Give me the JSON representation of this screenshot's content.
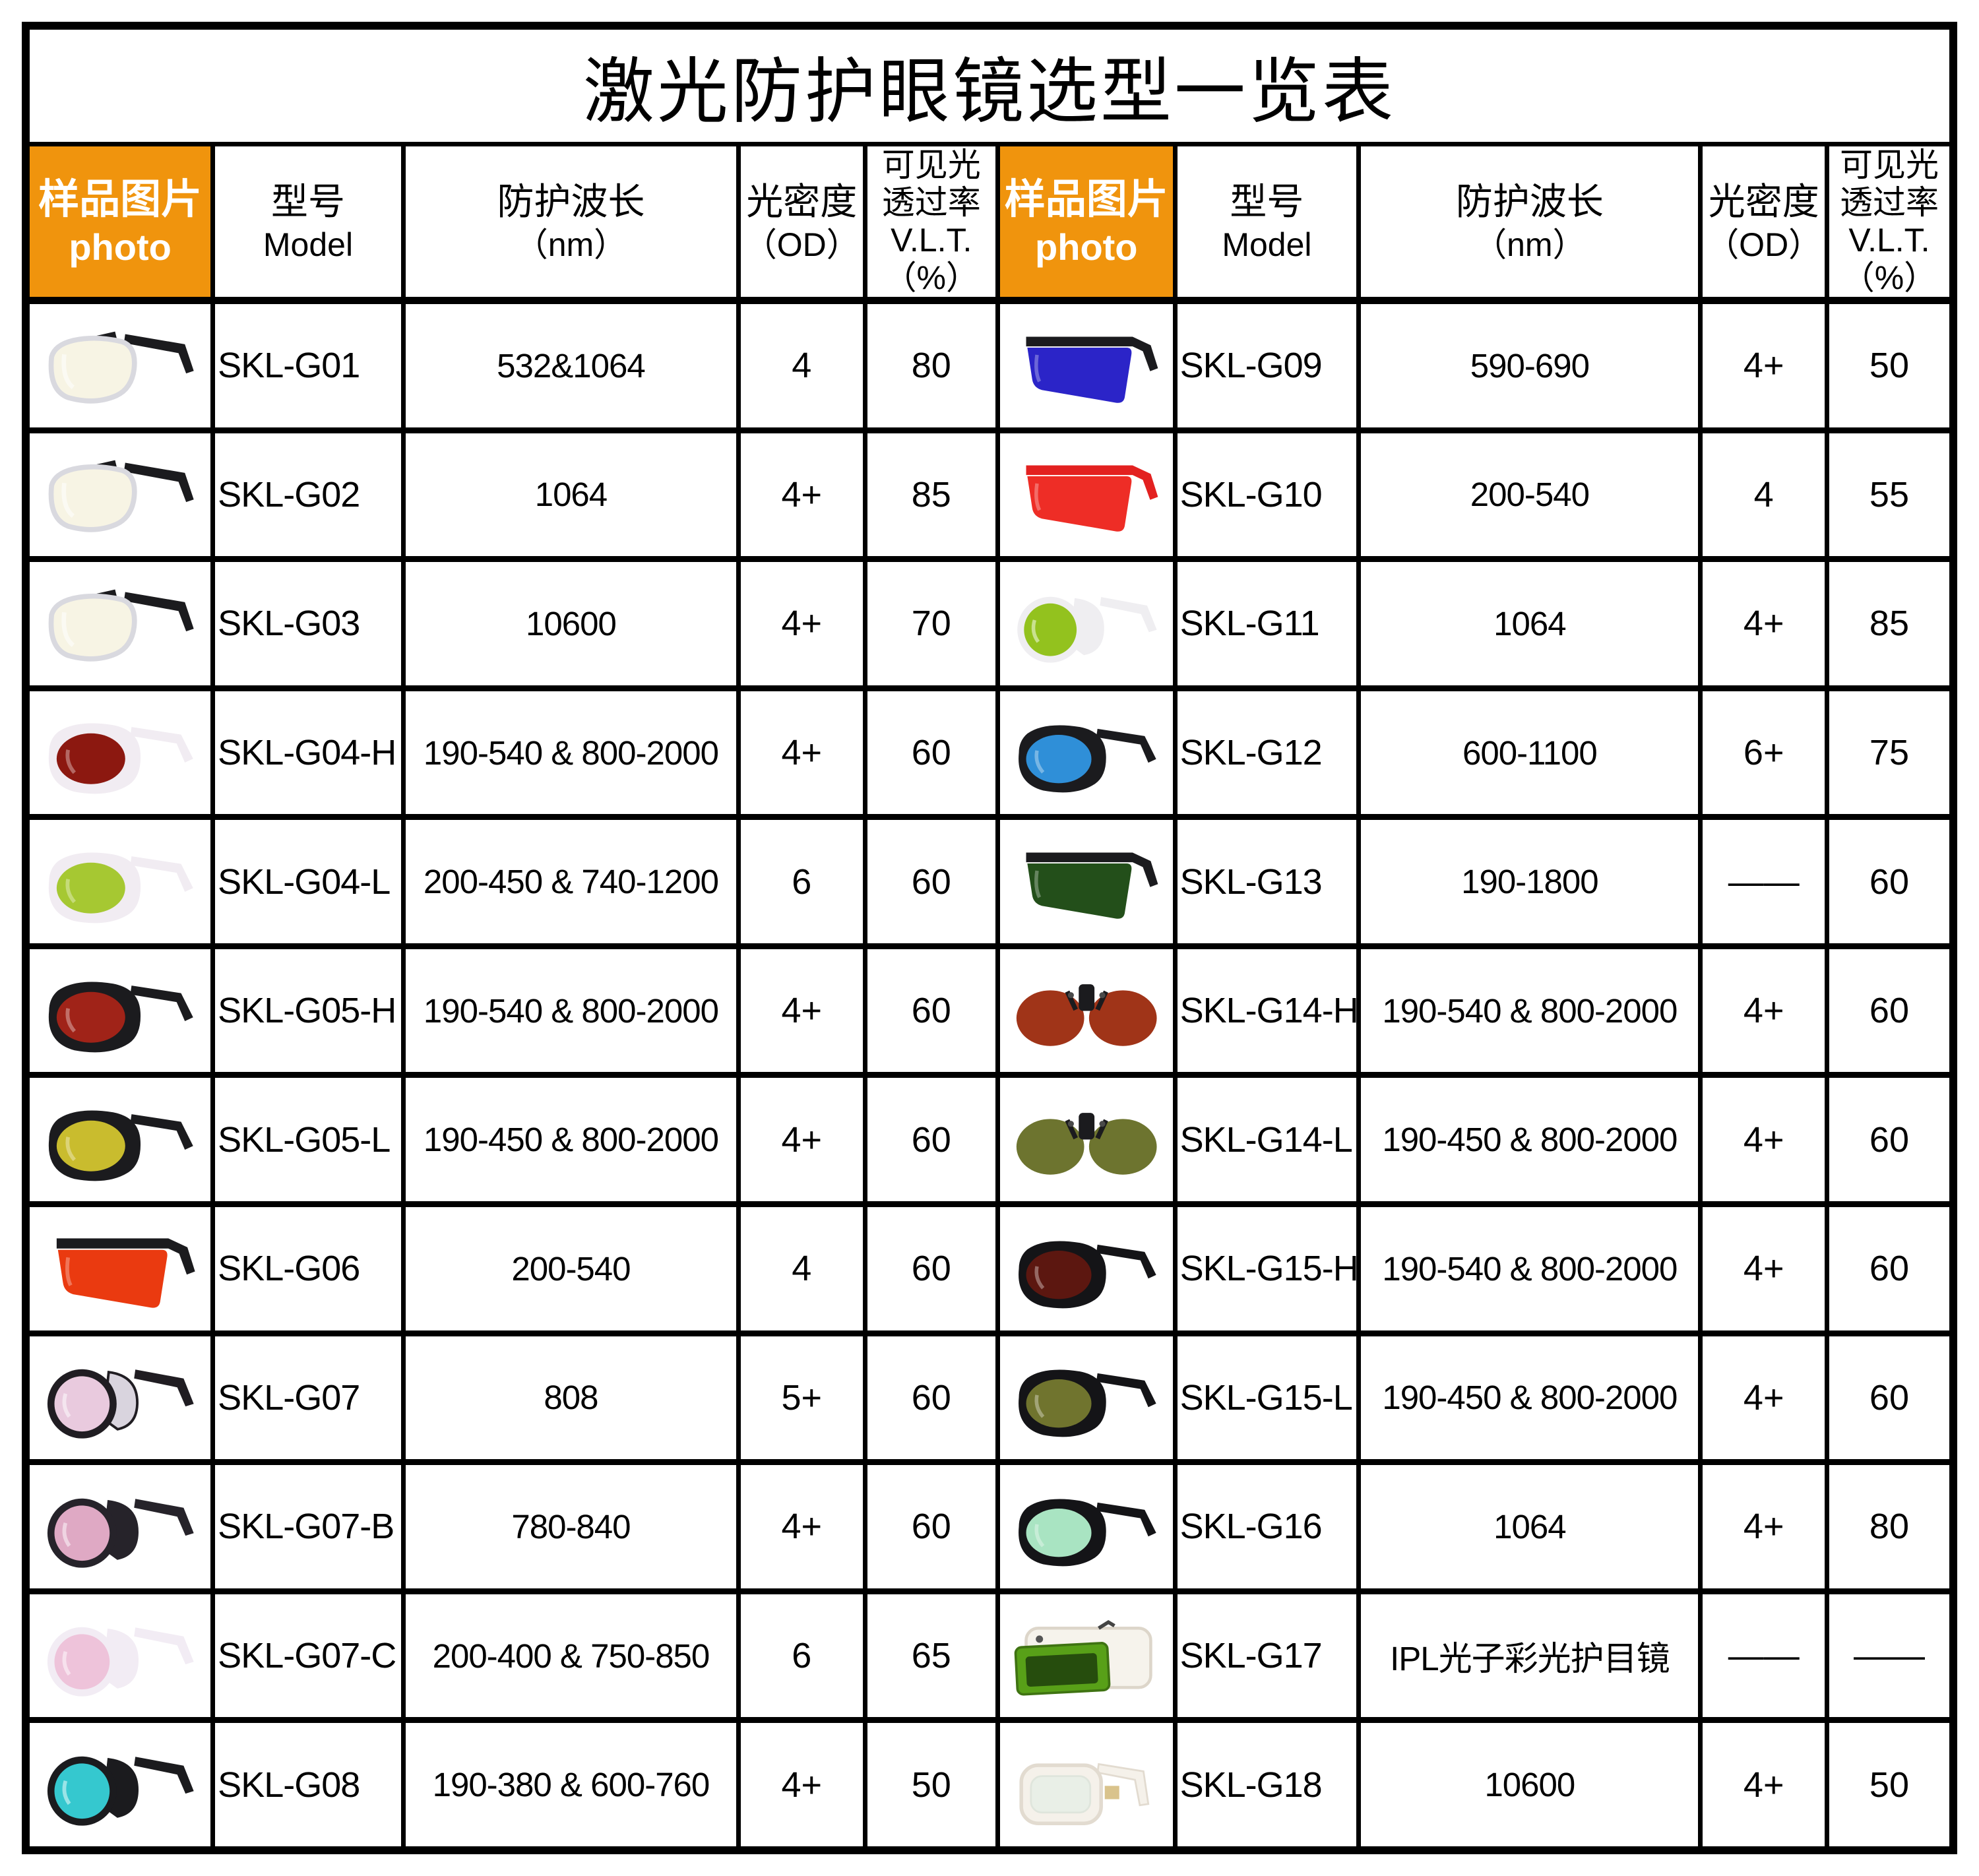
{
  "title": "激光防护眼镜选型一览表",
  "accent_orange": "#F0940D",
  "columns": {
    "photo_zh": "样品图片",
    "photo_en": "photo",
    "model_zh": "型号",
    "model_en": "Model",
    "wavelength_zh": "防护波长",
    "wavelength_unit": "（nm）",
    "od_zh": "光密度",
    "od_unit": "（OD）",
    "vlt_lines": [
      "可见光",
      "透过率",
      "V.L.T.",
      "（%）"
    ]
  },
  "rows": [
    {
      "left": {
        "model": "SKL-G01",
        "wavelength": "532&1064",
        "od": "4",
        "vlt": "80",
        "photo": {
          "type": "spec",
          "frame": "#d9d9df",
          "lens": "#f7f4e4",
          "temple": "#1b1b1e",
          "label": "clear-frame-safety-glasses"
        }
      },
      "right": {
        "model": "SKL-G09",
        "wavelength": "590-690",
        "od": "4+",
        "vlt": "50",
        "photo": {
          "type": "shield",
          "frame": "#1b1b1e",
          "lens": "#2b24c8",
          "temple": "#1b1b1e",
          "label": "black-frame-blue-shield-glasses"
        }
      }
    },
    {
      "left": {
        "model": "SKL-G02",
        "wavelength": "1064",
        "od": "4+",
        "vlt": "85",
        "photo": {
          "type": "spec",
          "frame": "#d9d9df",
          "lens": "#f7f4e4",
          "temple": "#1b1b1e",
          "label": "clear-frame-safety-glasses"
        }
      },
      "right": {
        "model": "SKL-G10",
        "wavelength": "200-540",
        "od": "4",
        "vlt": "55",
        "photo": {
          "type": "shield",
          "frame": "#e32120",
          "lens": "#ee2d26",
          "temple": "#e32120",
          "label": "red-shield-glasses"
        }
      }
    },
    {
      "left": {
        "model": "SKL-G03",
        "wavelength": "10600",
        "od": "4+",
        "vlt": "70",
        "photo": {
          "type": "spec",
          "frame": "#d9d9df",
          "lens": "#f7f4e4",
          "temple": "#1b1b1e",
          "label": "clear-frame-safety-glasses"
        }
      },
      "right": {
        "model": "SKL-G11",
        "wavelength": "1064",
        "od": "4+",
        "vlt": "85",
        "photo": {
          "type": "round",
          "frame": "#efeef1",
          "lens": "#93c21e",
          "shield": "#efeef1",
          "label": "white-frame-green-lens-glasses"
        }
      }
    },
    {
      "left": {
        "model": "SKL-G04-H",
        "wavelength": "190-540 & 800-2000",
        "od": "4+",
        "vlt": "60",
        "photo": {
          "type": "goggle",
          "frame": "#f1ecf2",
          "lens": "#8c1810",
          "label": "white-frame-dark-red-lens-goggles"
        }
      },
      "right": {
        "model": "SKL-G12",
        "wavelength": "600-1100",
        "od": "6+",
        "vlt": "75",
        "photo": {
          "type": "goggle",
          "frame": "#1b1b1e",
          "lens": "#2f8fd8",
          "label": "black-frame-blue-lens-goggles"
        }
      }
    },
    {
      "left": {
        "model": "SKL-G04-L",
        "wavelength": "200-450 & 740-1200",
        "od": "6",
        "vlt": "60",
        "photo": {
          "type": "goggle",
          "frame": "#f1ecf2",
          "lens": "#a6c832",
          "label": "white-frame-yellow-green-lens-goggles"
        }
      },
      "right": {
        "model": "SKL-G13",
        "wavelength": "190-1800",
        "od": "——",
        "vlt": "60",
        "photo": {
          "type": "shield",
          "frame": "#1b1b1e",
          "lens": "#234f1a",
          "temple": "#1b1b1e",
          "label": "black-frame-dark-green-shield-glasses"
        }
      }
    },
    {
      "left": {
        "model": "SKL-G05-H",
        "wavelength": "190-540 & 800-2000",
        "od": "4+",
        "vlt": "60",
        "photo": {
          "type": "goggle",
          "frame": "#1b1b1e",
          "lens": "#a02318",
          "label": "black-frame-red-lens-goggles"
        }
      },
      "right": {
        "model": "SKL-G14-H",
        "wavelength": "190-540 & 800-2000",
        "od": "4+",
        "vlt": "60",
        "photo": {
          "type": "clipon",
          "frame": "#1b1b1e",
          "lens": "#a03418",
          "label": "clip-on-brown-red-lenses"
        }
      }
    },
    {
      "left": {
        "model": "SKL-G05-L",
        "wavelength": "190-450 & 800-2000",
        "od": "4+",
        "vlt": "60",
        "photo": {
          "type": "goggle",
          "frame": "#1b1b1e",
          "lens": "#c9bc2e",
          "label": "black-frame-yellow-lens-goggles"
        }
      },
      "right": {
        "model": "SKL-G14-L",
        "wavelength": "190-450 & 800-2000",
        "od": "4+",
        "vlt": "60",
        "photo": {
          "type": "clipon",
          "frame": "#1b1b1e",
          "lens": "#6d742f",
          "label": "clip-on-olive-green-lenses"
        }
      }
    },
    {
      "left": {
        "model": "SKL-G06",
        "wavelength": "200-540",
        "od": "4",
        "vlt": "60",
        "photo": {
          "type": "shield",
          "frame": "#1b1b1e",
          "lens": "#ea3a10",
          "temple": "#1b1b1e",
          "label": "orange-red-shield-glasses"
        }
      },
      "right": {
        "model": "SKL-G15-H",
        "wavelength": "190-540 & 800-2000",
        "od": "4+",
        "vlt": "60",
        "photo": {
          "type": "goggle",
          "frame": "#141417",
          "lens": "#5c1710",
          "label": "black-frame-dark-red-lens-goggles"
        }
      }
    },
    {
      "left": {
        "model": "SKL-G07",
        "wavelength": "808",
        "od": "5+",
        "vlt": "60",
        "photo": {
          "type": "round",
          "frame": "#201d22",
          "lens": "#e9cade",
          "shield": "#d9d4de",
          "label": "black-frame-pink-lens-glasses"
        }
      },
      "right": {
        "model": "SKL-G15-L",
        "wavelength": "190-450 & 800-2000",
        "od": "4+",
        "vlt": "60",
        "photo": {
          "type": "goggle",
          "frame": "#141417",
          "lens": "#70742e",
          "label": "black-frame-olive-lens-goggles"
        }
      }
    },
    {
      "left": {
        "model": "SKL-G07-B",
        "wavelength": "780-840",
        "od": "4+",
        "vlt": "60",
        "photo": {
          "type": "round",
          "frame": "#26232a",
          "lens": "#dfa9c4",
          "shield": "#26232a",
          "label": "black-frame-pink-lens-glasses"
        }
      },
      "right": {
        "model": "SKL-G16",
        "wavelength": "1064",
        "od": "4+",
        "vlt": "80",
        "photo": {
          "type": "goggle",
          "frame": "#141417",
          "lens": "#a9e4c2",
          "label": "black-frame-iridescent-green-lens-goggles"
        }
      }
    },
    {
      "left": {
        "model": "SKL-G07-C",
        "wavelength": "200-400 & 750-850",
        "od": "6",
        "vlt": "65",
        "photo": {
          "type": "round",
          "frame": "#f2ecf4",
          "lens": "#eec3da",
          "shield": "#f2ecf4",
          "label": "white-frame-pink-lens-glasses"
        }
      },
      "right": {
        "model": "SKL-G17",
        "wavelength": "IPL光子彩光护目镜",
        "od": "——",
        "vlt": "——",
        "photo": {
          "type": "flip",
          "frame": "#f6f3ec",
          "lens": "#58a018",
          "label": "white-ipl-goggle-green-lens"
        }
      }
    },
    {
      "left": {
        "model": "SKL-G08",
        "wavelength": "190-380 & 600-760",
        "od": "4+",
        "vlt": "50",
        "photo": {
          "type": "round",
          "frame": "#1b1b1e",
          "lens": "#35c8cf",
          "shield": "#1b1b1e",
          "label": "black-frame-cyan-lens-glasses"
        }
      },
      "right": {
        "model": "SKL-G18",
        "wavelength": "10600",
        "od": "4+",
        "vlt": "50",
        "photo": {
          "type": "whitespec",
          "frame": "#f5f1ea",
          "lens": "#e9efe7",
          "label": "white-frame-glasses-pale-lens"
        }
      }
    }
  ]
}
